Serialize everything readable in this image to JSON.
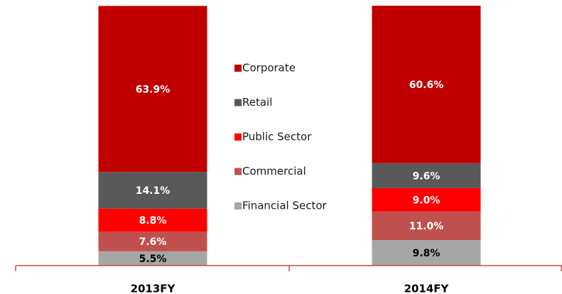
{
  "chart_data": {
    "type": "stacked_bar",
    "categories": [
      "2013FY",
      "2014FY"
    ],
    "series": [
      {
        "name": "Financial Sector",
        "color": "#a6a6a6",
        "label_color": "#000000",
        "values": [
          5.5,
          9.8
        ],
        "value_labels": [
          "5.5%",
          "9.8%"
        ]
      },
      {
        "name": "Commercial",
        "color": "#c0504d",
        "label_color": "#ffffff",
        "values": [
          7.6,
          11.0
        ],
        "value_labels": [
          "7.6%",
          "11.0%"
        ]
      },
      {
        "name": "Public Sector",
        "color": "#ff0000",
        "label_color": "#ffffff",
        "values": [
          8.8,
          9.0
        ],
        "value_labels": [
          "8.8%",
          "9.0%"
        ]
      },
      {
        "name": "Retail",
        "color": "#595959",
        "label_color": "#ffffff",
        "values": [
          14.1,
          9.6
        ],
        "value_labels": [
          "14.1%",
          "9.6%"
        ]
      },
      {
        "name": "Corporate",
        "color": "#c00000",
        "label_color": "#ffffff",
        "values": [
          63.9,
          60.6
        ],
        "value_labels": [
          "63.9%",
          "60.6%"
        ]
      }
    ]
  }
}
